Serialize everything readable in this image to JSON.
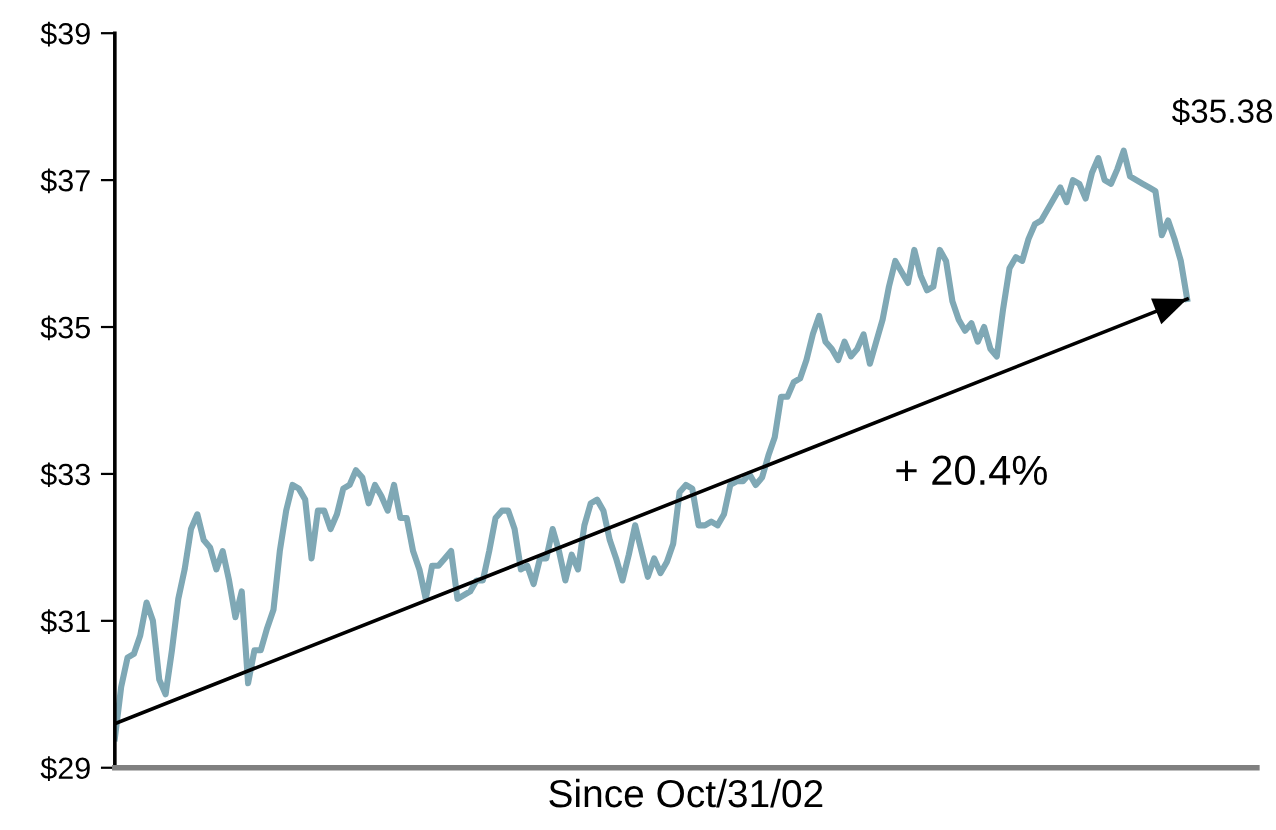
{
  "chart_data": {
    "type": "line",
    "xlabel": "Since Oct/31/02",
    "categories": [
      null,
      null,
      null,
      null,
      null,
      null,
      null,
      null,
      null,
      null,
      null,
      null,
      null,
      null,
      null,
      null,
      null,
      null,
      null,
      null,
      null,
      null,
      null,
      null,
      null,
      null,
      null,
      null,
      null,
      null,
      null,
      null,
      null,
      null,
      null,
      null,
      null,
      null,
      null,
      null,
      null,
      null,
      null,
      null,
      null,
      null,
      null,
      null,
      null,
      null,
      null,
      null,
      null,
      null,
      null,
      null,
      null,
      null,
      null,
      null,
      null,
      null,
      null,
      null,
      null,
      null,
      null,
      null,
      null,
      null,
      null,
      null,
      null,
      null,
      null,
      null,
      null,
      null,
      null,
      null,
      null,
      null,
      null,
      null,
      null,
      null,
      null,
      null,
      null,
      null,
      null,
      null,
      null,
      null,
      null,
      null,
      null,
      null,
      null,
      null,
      null,
      null,
      null,
      null,
      null,
      null,
      null,
      null,
      null,
      null,
      null,
      null,
      null,
      null,
      null,
      null,
      null,
      null,
      null,
      null,
      null,
      null,
      null,
      null,
      null,
      null,
      null,
      null,
      null,
      null,
      null,
      null,
      null,
      null,
      null,
      null,
      null,
      null,
      null,
      null,
      null,
      null,
      null,
      null,
      null,
      null,
      null,
      null,
      null,
      null,
      null,
      null,
      null,
      null,
      null,
      null,
      null,
      null,
      null,
      null,
      null,
      null,
      null,
      null,
      null,
      null,
      null,
      null,
      null,
      null
    ],
    "ylim": [
      29,
      39
    ],
    "yticks": [
      {
        "value": 29,
        "label": "$29"
      },
      {
        "value": 31,
        "label": "$31"
      },
      {
        "value": 33,
        "label": "$33"
      },
      {
        "value": 35,
        "label": "$35"
      },
      {
        "value": 37,
        "label": "$37"
      },
      {
        "value": 39,
        "label": "$39"
      }
    ],
    "grid": false,
    "legend": false,
    "marker": "none",
    "line_style": "solid",
    "series": [
      {
        "color": "#7fa8b5",
        "values": [
          29.4,
          30.1,
          30.5,
          30.55,
          30.8,
          31.25,
          31.0,
          30.2,
          30.0,
          30.6,
          31.3,
          31.7,
          32.25,
          32.45,
          32.1,
          32.0,
          31.7,
          31.95,
          31.55,
          31.05,
          31.4,
          30.15,
          30.6,
          30.6,
          30.9,
          31.15,
          31.95,
          32.5,
          32.85,
          32.8,
          32.65,
          31.85,
          32.5,
          32.5,
          32.25,
          32.45,
          32.8,
          32.85,
          33.05,
          32.95,
          32.6,
          32.85,
          32.7,
          32.5,
          32.85,
          32.4,
          32.4,
          31.95,
          31.7,
          31.3,
          31.75,
          31.75,
          31.85,
          31.95,
          31.3,
          31.35,
          31.4,
          31.55,
          31.55,
          31.95,
          32.4,
          32.5,
          32.5,
          32.25,
          31.7,
          31.75,
          31.5,
          31.85,
          31.85,
          32.25,
          31.95,
          31.55,
          31.9,
          31.7,
          32.3,
          32.6,
          32.65,
          32.5,
          32.1,
          31.85,
          31.55,
          31.9,
          32.3,
          31.95,
          31.6,
          31.85,
          31.65,
          31.8,
          32.05,
          32.75,
          32.85,
          32.8,
          32.3,
          32.3,
          32.35,
          32.3,
          32.45,
          32.85,
          32.9,
          32.9,
          33.0,
          32.85,
          32.95,
          33.25,
          33.5,
          34.05,
          34.05,
          34.25,
          34.3,
          34.55,
          34.9,
          35.15,
          34.8,
          34.7,
          34.55,
          34.8,
          34.6,
          34.7,
          34.9,
          34.5,
          34.8,
          35.1,
          35.55,
          35.9,
          35.75,
          35.6,
          36.05,
          35.7,
          35.5,
          35.55,
          36.05,
          35.9,
          35.35,
          35.1,
          34.95,
          35.05,
          34.8,
          35.0,
          34.7,
          34.6,
          35.25,
          35.8,
          35.95,
          35.9,
          36.2,
          36.4,
          36.45,
          36.6,
          36.75,
          36.9,
          36.7,
          37.0,
          36.95,
          36.75,
          37.1,
          37.3,
          37.0,
          36.95,
          37.15,
          37.4,
          37.05,
          37.0,
          36.95,
          36.9,
          36.85,
          36.25,
          36.45,
          36.2,
          35.9,
          35.38
        ]
      },
      {
        "color": "#000000",
        "values": [
          29.6,
          null,
          null,
          null,
          null,
          null,
          null,
          null,
          null,
          null,
          null,
          null,
          null,
          null,
          null,
          null,
          null,
          null,
          null,
          null,
          null,
          null,
          null,
          null,
          null,
          null,
          null,
          null,
          null,
          null,
          null,
          null,
          null,
          null,
          null,
          null,
          null,
          null,
          null,
          null,
          null,
          null,
          null,
          null,
          null,
          null,
          null,
          null,
          null,
          null,
          null,
          null,
          null,
          null,
          null,
          null,
          null,
          null,
          null,
          null,
          null,
          null,
          null,
          null,
          null,
          null,
          null,
          null,
          null,
          null,
          null,
          null,
          null,
          null,
          null,
          null,
          null,
          null,
          null,
          null,
          null,
          null,
          null,
          null,
          null,
          null,
          null,
          null,
          null,
          null,
          null,
          null,
          null,
          null,
          null,
          null,
          null,
          null,
          null,
          null,
          null,
          null,
          null,
          null,
          null,
          null,
          null,
          null,
          null,
          null,
          null,
          null,
          null,
          null,
          null,
          null,
          null,
          null,
          null,
          null,
          null,
          null,
          null,
          null,
          null,
          null,
          null,
          null,
          null,
          null,
          null,
          null,
          null,
          null,
          null,
          null,
          null,
          null,
          null,
          null,
          null,
          null,
          null,
          null,
          null,
          null,
          null,
          null,
          null,
          null,
          null,
          null,
          null,
          null,
          null,
          null,
          null,
          null,
          null,
          null,
          null,
          null,
          null,
          null,
          null,
          null,
          null,
          null,
          null,
          35.38
        ]
      }
    ],
    "annotations": [
      "+ 20.4%",
      "$35.38"
    ]
  }
}
